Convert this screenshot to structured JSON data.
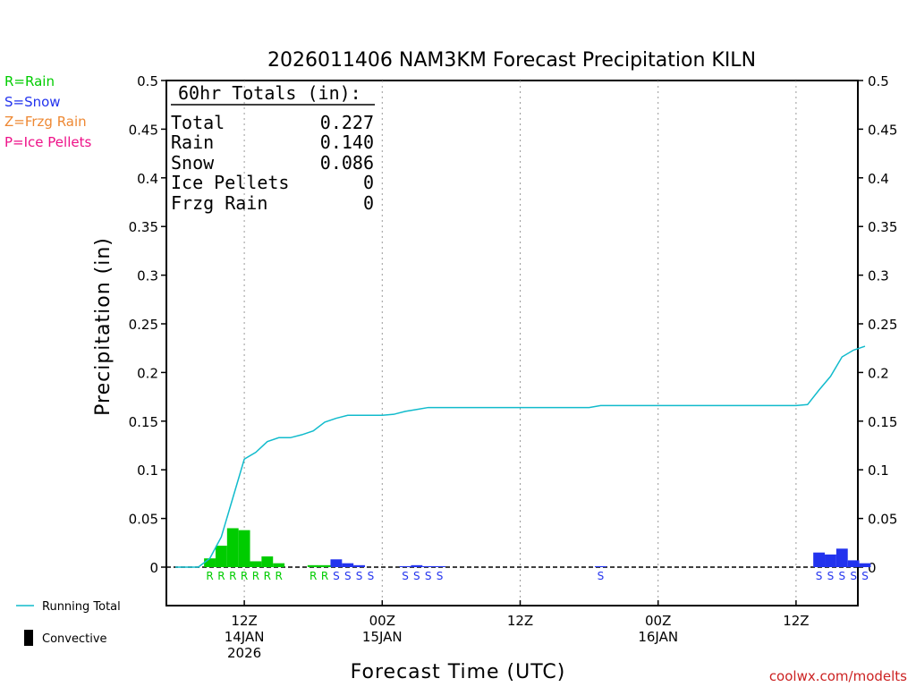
{
  "title": "2026011406 NAM3KM Forecast Precipitation KILN",
  "xlabel": "Forecast Time (UTC)",
  "ylabel": "Precipitation (in)",
  "credit": "coolwx.com/modelts",
  "colors": {
    "rain": "#00cc00",
    "snow": "#2233ee",
    "frzg": "#ee8833",
    "ice": "#ee1188",
    "running": "#11bbcc",
    "credit": "#cc2222"
  },
  "precip_legend": [
    {
      "label": "R=Rain",
      "type": "rain"
    },
    {
      "label": "S=Snow",
      "type": "snow"
    },
    {
      "label": "Z=Frzg Rain",
      "type": "frzg"
    },
    {
      "label": "P=Ice Pellets",
      "type": "ice"
    }
  ],
  "series_legend": {
    "running": "Running Total",
    "convective": "Convective"
  },
  "totals": {
    "header": "60hr Totals (in):",
    "rows": [
      {
        "label": "Total",
        "value": "0.227"
      },
      {
        "label": "Rain",
        "value": "0.140"
      },
      {
        "label": "Snow",
        "value": "0.086"
      },
      {
        "label": "Ice Pellets",
        "value": "0"
      },
      {
        "label": "Frzg Rain",
        "value": "0"
      }
    ]
  },
  "chart_data": {
    "type": "bar",
    "title": "2026011406 NAM3KM Forecast Precipitation KILN",
    "xlabel": "Forecast Time (UTC)",
    "ylabel": "Precipitation (in)",
    "x_unit": "forecast hour from 2026-01-14 06Z",
    "xlim": [
      0,
      61
    ],
    "ylim": [
      -0.04,
      0.5
    ],
    "yticks": [
      0,
      0.05,
      0.1,
      0.15,
      0.2,
      0.25,
      0.3,
      0.35,
      0.4,
      0.45,
      0.5
    ],
    "ytick_labels": [
      "0",
      "0.05",
      "0.1",
      "0.15",
      "0.2",
      "0.25",
      "0.3",
      "0.35",
      "0.4",
      "0.45",
      "0.5"
    ],
    "xticks": [
      {
        "hour": 6,
        "label": [
          "12Z",
          "14JAN",
          "2026"
        ]
      },
      {
        "hour": 18,
        "label": [
          "00Z",
          "15JAN"
        ]
      },
      {
        "hour": 30,
        "label": [
          "12Z"
        ]
      },
      {
        "hour": 42,
        "label": [
          "00Z",
          "16JAN"
        ]
      },
      {
        "hour": 54,
        "label": [
          "12Z"
        ]
      }
    ],
    "grid": "vertical dotted at tick hours",
    "bars": [
      {
        "hour": 3,
        "value": 0.009,
        "type": "rain"
      },
      {
        "hour": 4,
        "value": 0.022,
        "type": "rain"
      },
      {
        "hour": 5,
        "value": 0.04,
        "type": "rain"
      },
      {
        "hour": 6,
        "value": 0.038,
        "type": "rain"
      },
      {
        "hour": 7,
        "value": 0.006,
        "type": "rain"
      },
      {
        "hour": 8,
        "value": 0.011,
        "type": "rain"
      },
      {
        "hour": 9,
        "value": 0.004,
        "type": "rain"
      },
      {
        "hour": 12,
        "value": 0.002,
        "type": "rain"
      },
      {
        "hour": 13,
        "value": 0.002,
        "type": "rain"
      },
      {
        "hour": 14,
        "value": 0.008,
        "type": "snow"
      },
      {
        "hour": 15,
        "value": 0.004,
        "type": "snow"
      },
      {
        "hour": 16,
        "value": 0.002,
        "type": "snow"
      },
      {
        "hour": 20,
        "value": 0.001,
        "type": "snow"
      },
      {
        "hour": 21,
        "value": 0.002,
        "type": "snow"
      },
      {
        "hour": 22,
        "value": 0.001,
        "type": "snow"
      },
      {
        "hour": 23,
        "value": 0.001,
        "type": "snow"
      },
      {
        "hour": 37,
        "value": 0.001,
        "type": "snow"
      },
      {
        "hour": 56,
        "value": 0.015,
        "type": "snow"
      },
      {
        "hour": 57,
        "value": 0.013,
        "type": "snow"
      },
      {
        "hour": 58,
        "value": 0.019,
        "type": "snow"
      },
      {
        "hour": 59,
        "value": 0.007,
        "type": "snow"
      },
      {
        "hour": 60,
        "value": 0.004,
        "type": "snow"
      }
    ],
    "type_labels": [
      {
        "hour": 3,
        "text": "R",
        "type": "rain"
      },
      {
        "hour": 4,
        "text": "R",
        "type": "rain"
      },
      {
        "hour": 5,
        "text": "R",
        "type": "rain"
      },
      {
        "hour": 6,
        "text": "R",
        "type": "rain"
      },
      {
        "hour": 7,
        "text": "R",
        "type": "rain"
      },
      {
        "hour": 8,
        "text": "R",
        "type": "rain"
      },
      {
        "hour": 9,
        "text": "R",
        "type": "rain"
      },
      {
        "hour": 12,
        "text": "R",
        "type": "rain"
      },
      {
        "hour": 13,
        "text": "R",
        "type": "rain"
      },
      {
        "hour": 14,
        "text": "S",
        "type": "snow"
      },
      {
        "hour": 15,
        "text": "S",
        "type": "snow"
      },
      {
        "hour": 16,
        "text": "S",
        "type": "snow"
      },
      {
        "hour": 17,
        "text": "S",
        "type": "snow"
      },
      {
        "hour": 20,
        "text": "S",
        "type": "snow"
      },
      {
        "hour": 21,
        "text": "S",
        "type": "snow"
      },
      {
        "hour": 22,
        "text": "S",
        "type": "snow"
      },
      {
        "hour": 23,
        "text": "S",
        "type": "snow"
      },
      {
        "hour": 37,
        "text": "S",
        "type": "snow"
      },
      {
        "hour": 56,
        "text": "S",
        "type": "snow"
      },
      {
        "hour": 57,
        "text": "S",
        "type": "snow"
      },
      {
        "hour": 58,
        "text": "S",
        "type": "snow"
      },
      {
        "hour": 59,
        "text": "S",
        "type": "snow"
      },
      {
        "hour": 60,
        "text": "S",
        "type": "snow"
      }
    ],
    "running_total": {
      "name": "Running Total",
      "points": [
        [
          0,
          0
        ],
        [
          1,
          0
        ],
        [
          2,
          0
        ],
        [
          3,
          0.009
        ],
        [
          4,
          0.031
        ],
        [
          5,
          0.071
        ],
        [
          6,
          0.111
        ],
        [
          7,
          0.118
        ],
        [
          8,
          0.129
        ],
        [
          9,
          0.133
        ],
        [
          10,
          0.133
        ],
        [
          11,
          0.136
        ],
        [
          12,
          0.14
        ],
        [
          13,
          0.149
        ],
        [
          14,
          0.153
        ],
        [
          15,
          0.156
        ],
        [
          16,
          0.156
        ],
        [
          17,
          0.156
        ],
        [
          18,
          0.156
        ],
        [
          19,
          0.157
        ],
        [
          20,
          0.16
        ],
        [
          21,
          0.162
        ],
        [
          22,
          0.164
        ],
        [
          23,
          0.164
        ],
        [
          24,
          0.164
        ],
        [
          30,
          0.164
        ],
        [
          36,
          0.164
        ],
        [
          37,
          0.166
        ],
        [
          40,
          0.166
        ],
        [
          48,
          0.166
        ],
        [
          54,
          0.166
        ],
        [
          55,
          0.167
        ],
        [
          56,
          0.182
        ],
        [
          57,
          0.196
        ],
        [
          58,
          0.216
        ],
        [
          59,
          0.223
        ],
        [
          60,
          0.227
        ]
      ]
    }
  }
}
